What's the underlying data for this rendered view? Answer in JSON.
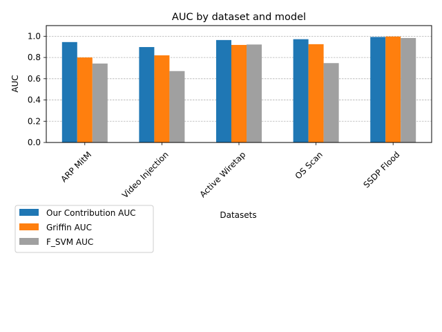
{
  "chart_data": {
    "type": "bar",
    "title": "AUC by dataset and model",
    "xlabel": "Datasets",
    "ylabel": "AUC",
    "ylim": [
      0,
      1.1
    ],
    "yticks": [
      "0.0",
      "0.2",
      "0.4",
      "0.6",
      "0.8",
      "1.0"
    ],
    "grid": "y-dashed",
    "legend_position": "bottom-left, outside plot",
    "categories": [
      "ARP MitM",
      "Video Injection",
      "Active Wiretap",
      "OS Scan",
      "SSDP Flood"
    ],
    "series": [
      {
        "name": "Our Contribution AUC",
        "color": "#1f77b4",
        "values": [
          0.945,
          0.898,
          0.964,
          0.972,
          0.993
        ]
      },
      {
        "name": "Griffin AUC",
        "color": "#ff7f0e",
        "values": [
          0.8,
          0.82,
          0.918,
          0.925,
          0.997
        ]
      },
      {
        "name": "F_SVM AUC",
        "color": "#a0a0a0",
        "values": [
          0.743,
          0.672,
          0.922,
          0.747,
          0.983
        ]
      }
    ]
  }
}
